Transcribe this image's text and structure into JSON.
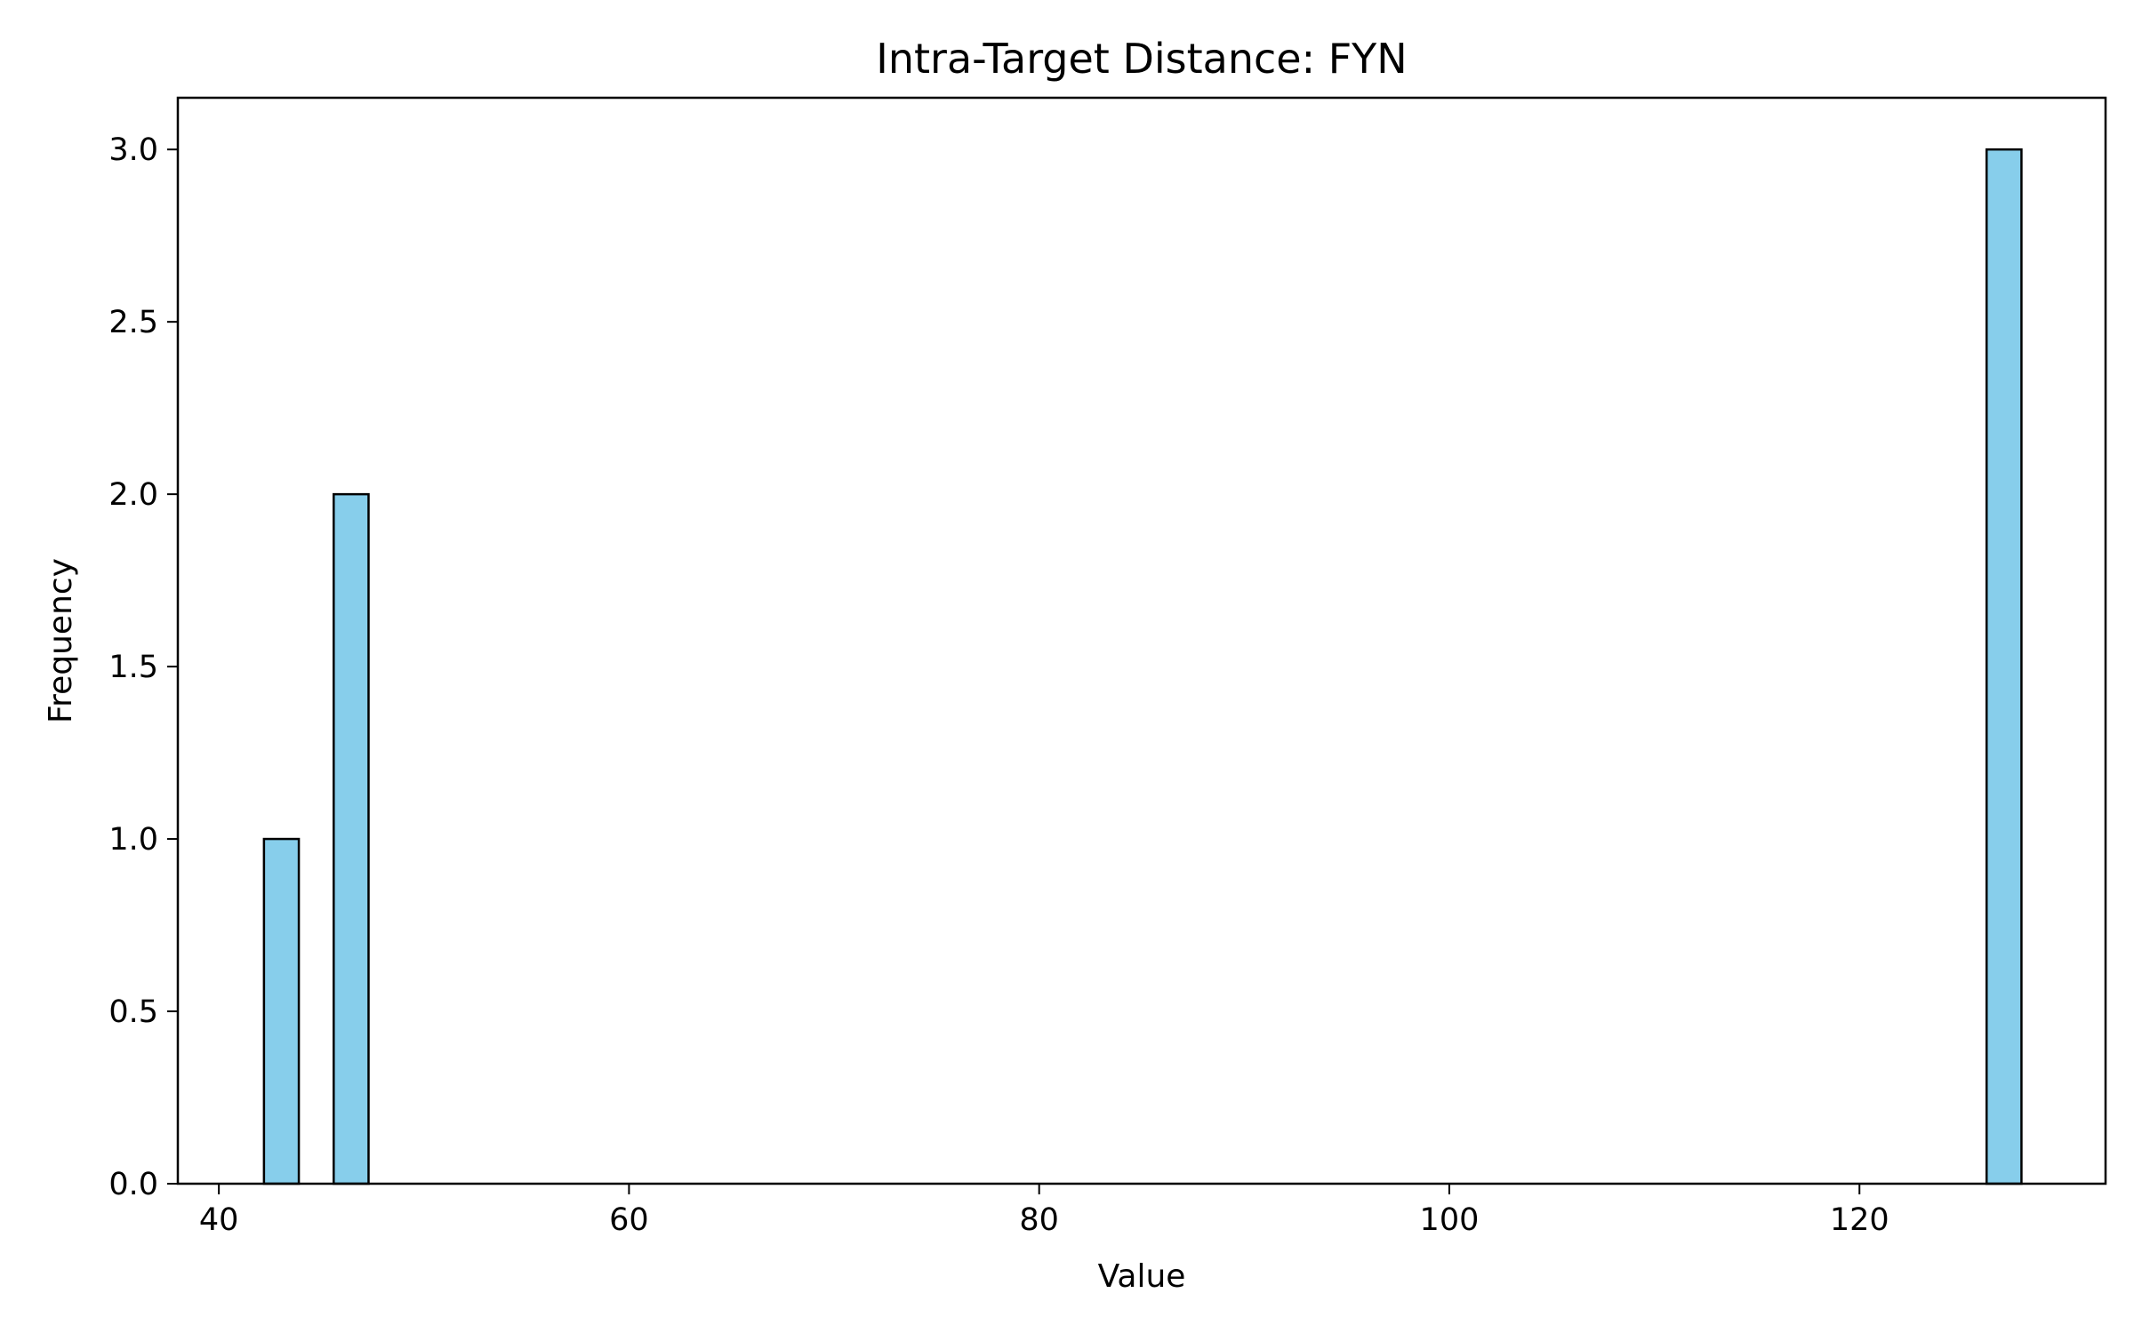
{
  "chart_data": {
    "type": "bar",
    "subtype": "histogram",
    "title": "Intra-Target Distance: FYN",
    "xlabel": "Value",
    "ylabel": "Frequency",
    "xlim": [
      38,
      132
    ],
    "ylim": [
      0,
      3.15
    ],
    "xticks": [
      40,
      60,
      80,
      100,
      120
    ],
    "xtick_labels": [
      "40",
      "60",
      "80",
      "100",
      "120"
    ],
    "yticks": [
      0,
      0.5,
      1.0,
      1.5,
      2.0,
      2.5,
      3.0
    ],
    "ytick_labels": [
      "0.0",
      "0.5",
      "1.0",
      "1.5",
      "2.0",
      "2.5",
      "3.0"
    ],
    "bins": [
      {
        "x_start": 42.2,
        "x_end": 43.9,
        "value": 1
      },
      {
        "x_start": 45.6,
        "x_end": 47.3,
        "value": 2
      },
      {
        "x_start": 126.2,
        "x_end": 127.9,
        "value": 3
      }
    ],
    "bar_color": "#87CEEB",
    "edge_color": "#000000",
    "grid": false,
    "legend": "none"
  }
}
